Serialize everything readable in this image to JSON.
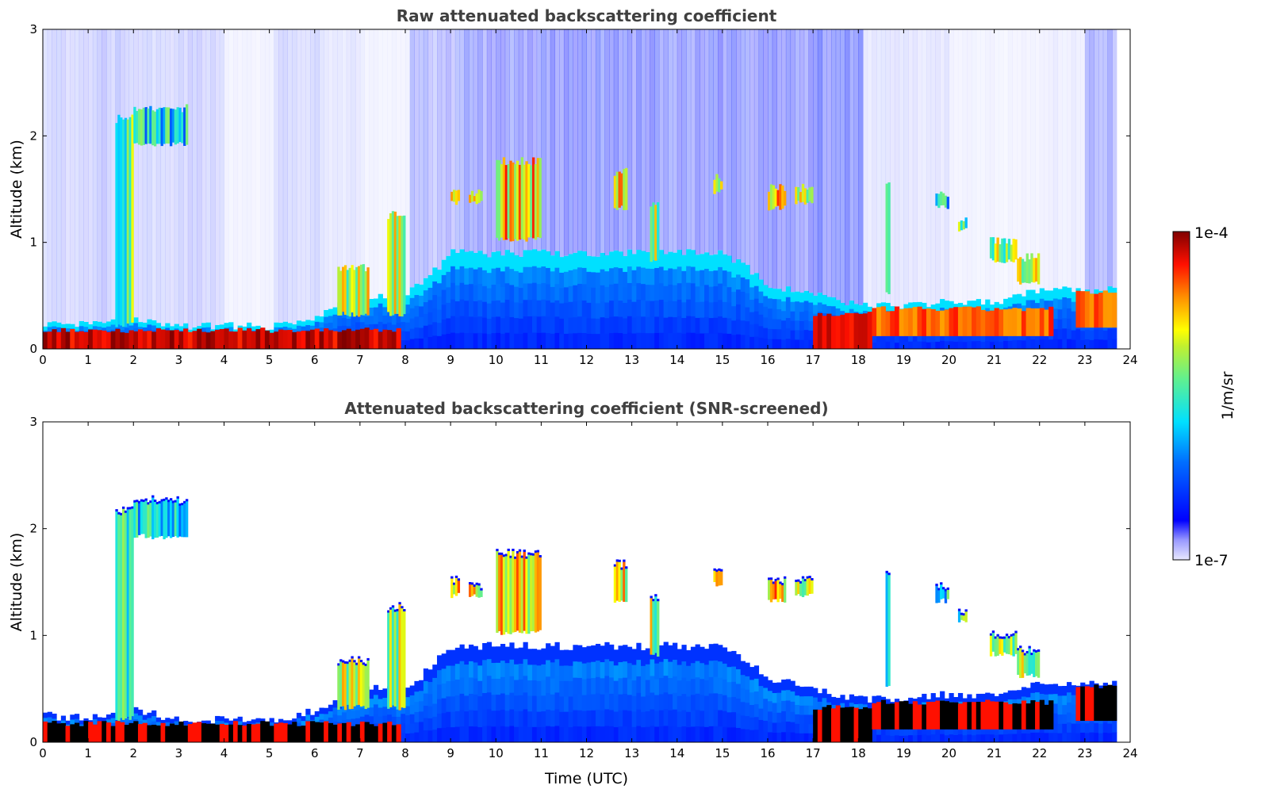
{
  "chart_data": [
    {
      "type": "heatmap",
      "title": "Raw attenuated backscattering coefficient",
      "xlabel": "",
      "ylabel": "Altitude (km)",
      "xlim": [
        0,
        24
      ],
      "ylim": [
        0,
        3
      ],
      "xticks": [
        "0",
        "1",
        "2",
        "3",
        "4",
        "5",
        "6",
        "7",
        "8",
        "9",
        "10",
        "11",
        "12",
        "13",
        "14",
        "15",
        "16",
        "17",
        "18",
        "19",
        "20",
        "21",
        "22",
        "23",
        "24"
      ],
      "yticks": [
        "0",
        "1",
        "2",
        "3"
      ],
      "screened": false
    },
    {
      "type": "heatmap",
      "title": "Attenuated backscattering coefficient (SNR-screened)",
      "xlabel": "Time (UTC)",
      "ylabel": "Altitude (km)",
      "xlim": [
        0,
        24
      ],
      "ylim": [
        0,
        3
      ],
      "xticks": [
        "0",
        "1",
        "2",
        "3",
        "4",
        "5",
        "6",
        "7",
        "8",
        "9",
        "10",
        "11",
        "12",
        "13",
        "14",
        "15",
        "16",
        "17",
        "18",
        "19",
        "20",
        "21",
        "22",
        "23",
        "24"
      ],
      "yticks": [
        "0",
        "1",
        "2",
        "3"
      ],
      "screened": true
    }
  ],
  "colorbar": {
    "label": "1/m/sr",
    "max_label": "1e-4",
    "min_label": "1e-7",
    "scale": "log",
    "range": [
      1e-07,
      0.0001
    ]
  },
  "features": {
    "data_end_hour": 23.7,
    "aerosol_layer_top_km": [
      0.25,
      0.22,
      0.3,
      0.2,
      0.22,
      0.2,
      0.3,
      0.5,
      0.5,
      0.9,
      0.9,
      0.9,
      0.9,
      0.9,
      0.9,
      0.9,
      0.6,
      0.5,
      0.4,
      0.4,
      0.45,
      0.45,
      0.55,
      0.55,
      0.55
    ],
    "raw_noise_density": [
      0.3,
      0.4,
      0.3,
      0.35,
      0.1,
      0.3,
      0.2,
      0.1,
      0.5,
      0.7,
      0.8,
      0.8,
      0.8,
      0.8,
      0.8,
      0.8,
      0.8,
      0.9,
      0.2,
      0.2,
      0.1,
      0.1,
      0.15,
      0.6,
      0.3
    ],
    "surface_layers": [
      {
        "t0": 0,
        "t1": 7.8,
        "base": 0,
        "top": 0.15,
        "level": 1.0
      },
      {
        "t0": 17.0,
        "t1": 18.3,
        "base": 0,
        "top": 0.3,
        "level": 1.0
      },
      {
        "t0": 18.3,
        "t1": 22.3,
        "base": 0.12,
        "top": 0.35,
        "level": 0.9
      },
      {
        "t0": 22.8,
        "t1": 23.7,
        "base": 0.2,
        "top": 0.5,
        "level": 0.9
      }
    ],
    "clouds": [
      {
        "t0": 1.6,
        "t1": 2.0,
        "base": 0.2,
        "top": 2.2,
        "level": 0.7
      },
      {
        "t0": 2.0,
        "t1": 3.2,
        "base": 1.9,
        "top": 2.3,
        "level": 0.6
      },
      {
        "t0": 6.5,
        "t1": 7.2,
        "base": 0.3,
        "top": 0.8,
        "level": 0.8
      },
      {
        "t0": 7.6,
        "t1": 8.0,
        "base": 0.3,
        "top": 1.3,
        "level": 0.8
      },
      {
        "t0": 9.0,
        "t1": 9.2,
        "base": 1.35,
        "top": 1.55,
        "level": 0.9
      },
      {
        "t0": 9.4,
        "t1": 9.7,
        "base": 1.35,
        "top": 1.5,
        "level": 0.85
      },
      {
        "t0": 10.0,
        "t1": 11.0,
        "base": 1.0,
        "top": 1.8,
        "level": 0.9
      },
      {
        "t0": 12.6,
        "t1": 12.9,
        "base": 1.3,
        "top": 1.7,
        "level": 0.85
      },
      {
        "t0": 13.4,
        "t1": 13.6,
        "base": 0.8,
        "top": 1.4,
        "level": 0.8
      },
      {
        "t0": 14.8,
        "t1": 15.0,
        "base": 1.45,
        "top": 1.65,
        "level": 0.9
      },
      {
        "t0": 16.0,
        "t1": 16.4,
        "base": 1.3,
        "top": 1.55,
        "level": 0.9
      },
      {
        "t0": 16.6,
        "t1": 17.0,
        "base": 1.35,
        "top": 1.55,
        "level": 0.85
      },
      {
        "t0": 18.6,
        "t1": 18.7,
        "base": 0.5,
        "top": 1.6,
        "level": 0.7
      },
      {
        "t0": 19.7,
        "t1": 20.0,
        "base": 1.3,
        "top": 1.5,
        "level": 0.6
      },
      {
        "t0": 20.2,
        "t1": 20.4,
        "base": 1.1,
        "top": 1.25,
        "level": 0.7
      },
      {
        "t0": 20.9,
        "t1": 21.5,
        "base": 0.8,
        "top": 1.05,
        "level": 0.8
      },
      {
        "t0": 21.5,
        "t1": 22.0,
        "base": 0.6,
        "top": 0.9,
        "level": 0.8
      }
    ]
  }
}
